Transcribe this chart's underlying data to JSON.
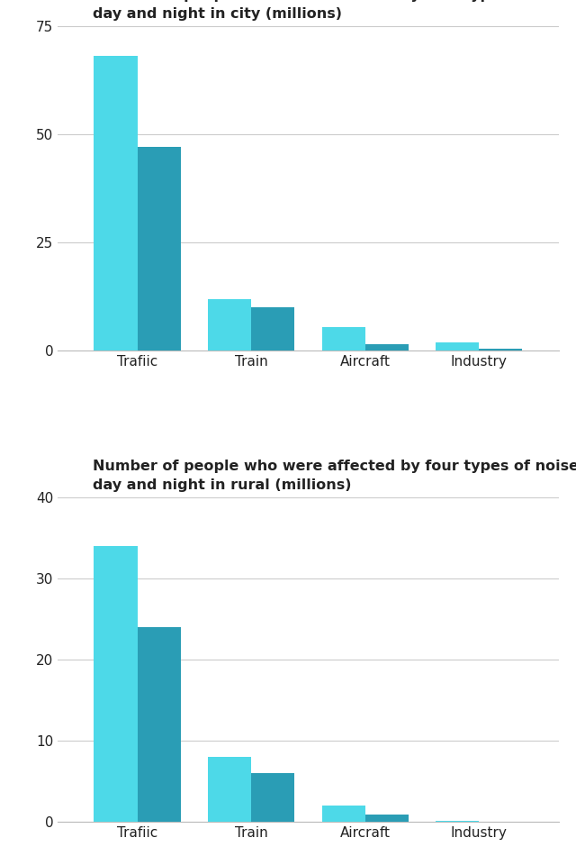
{
  "city": {
    "title": "Number of people who were affected by four types of noise pollution in\nday and night in city (millions)",
    "categories": [
      "Trafiic",
      "Train",
      "Aircraft",
      "Industry"
    ],
    "day_values": [
      68,
      12,
      5.5,
      2.0
    ],
    "night_values": [
      47,
      10,
      1.5,
      0.5
    ],
    "ylim": [
      0,
      75
    ],
    "yticks": [
      0,
      25,
      50,
      75
    ]
  },
  "rural": {
    "title": "Number of people who were affected by four types of noise pollution in\nday and night in rural (millions)",
    "categories": [
      "Trafiic",
      "Train",
      "Aircraft",
      "Industry"
    ],
    "day_values": [
      34,
      8,
      2.0,
      0.1
    ],
    "night_values": [
      24,
      6,
      0.9,
      0.0
    ],
    "ylim": [
      0,
      40
    ],
    "yticks": [
      0,
      10,
      20,
      30,
      40
    ]
  },
  "color_day": "#4DD9E8",
  "color_night": "#2A9DB5",
  "bar_width": 0.38,
  "background_color": "#ffffff",
  "font_color": "#222222",
  "title_fontsize": 11.5,
  "tick_fontsize": 11
}
